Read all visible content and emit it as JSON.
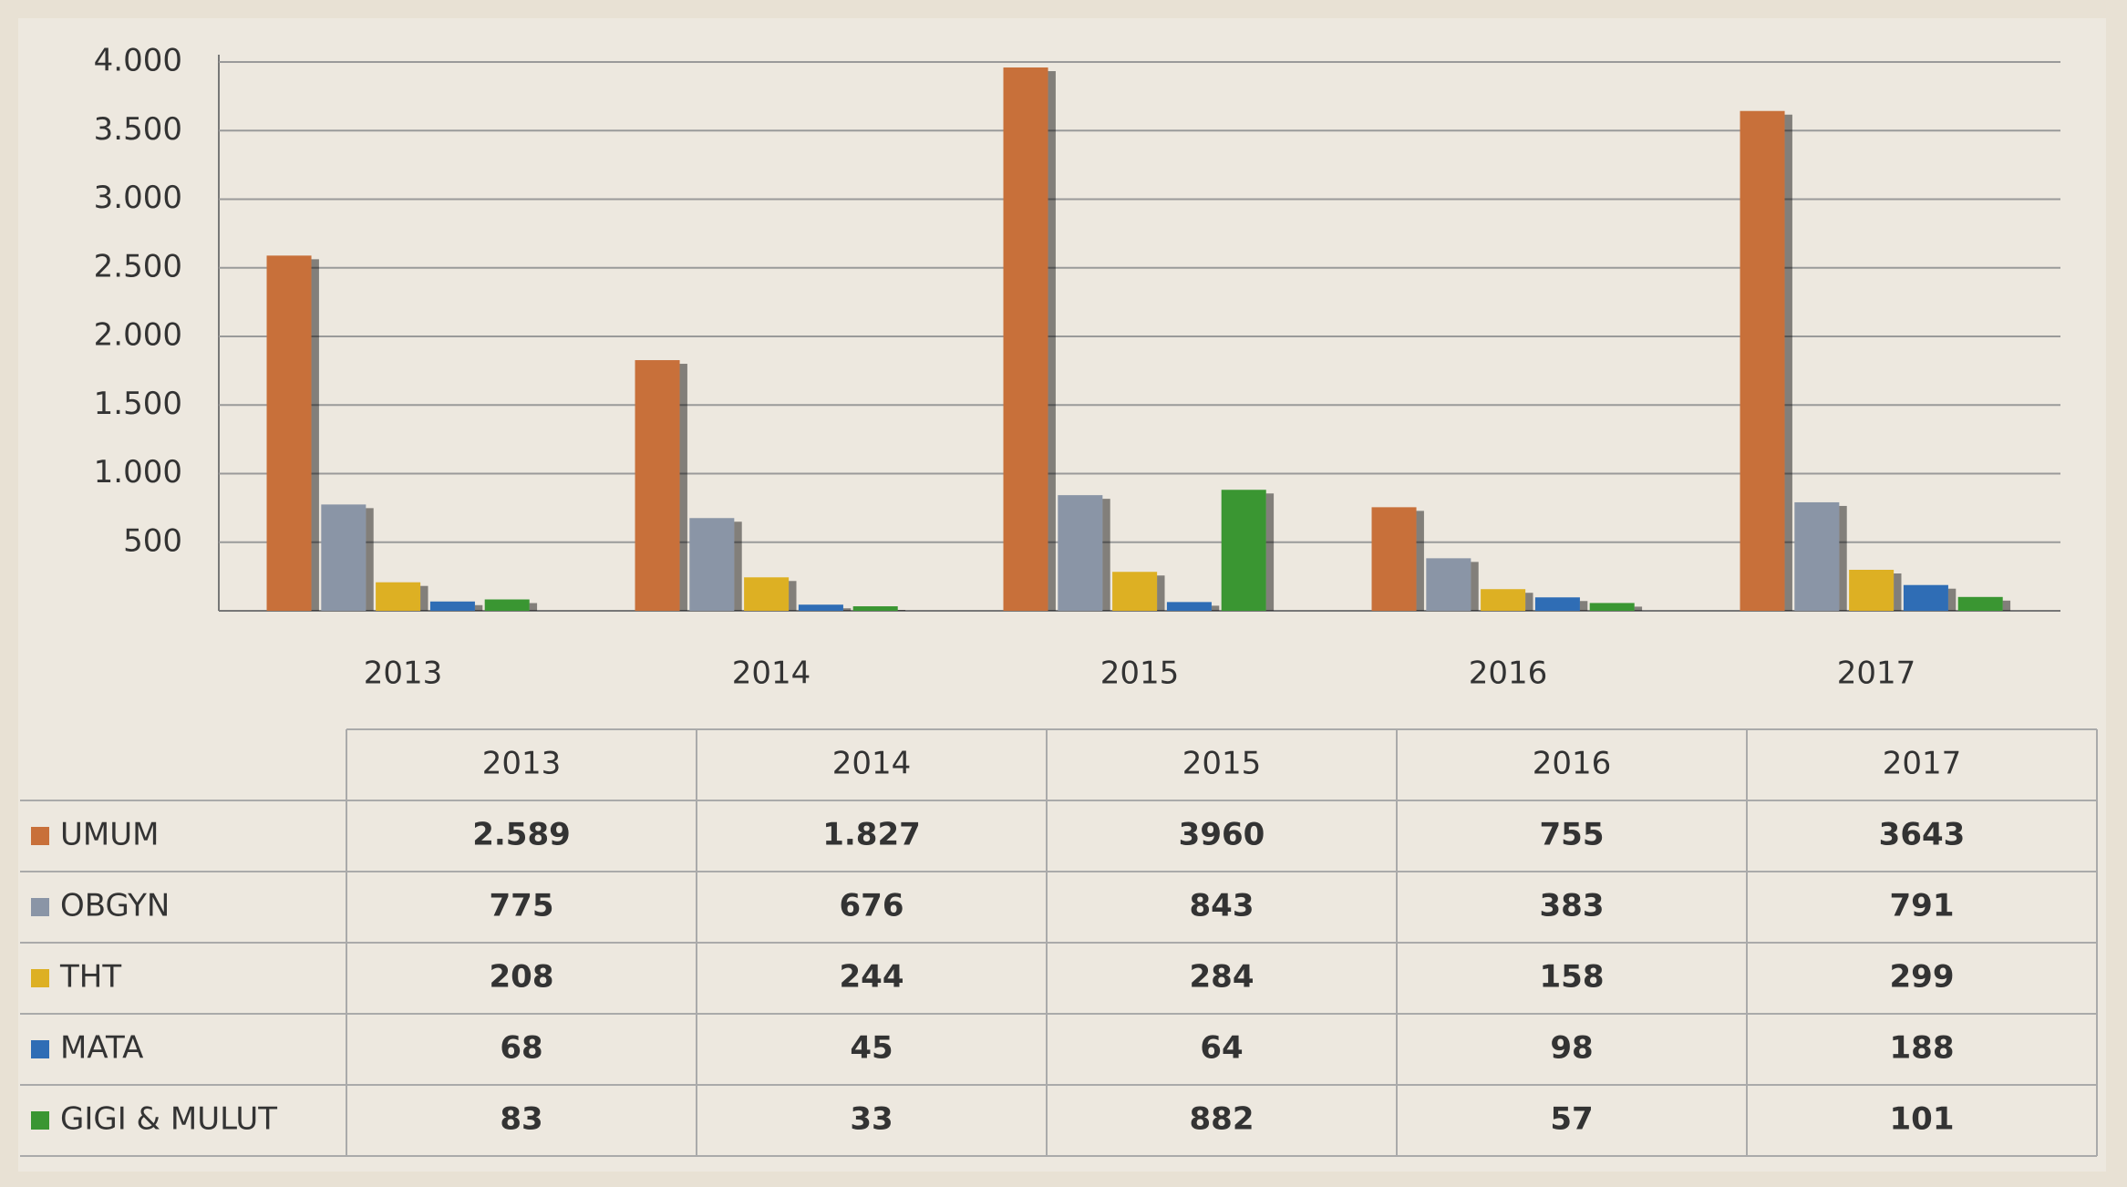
{
  "chart_data": {
    "type": "bar",
    "categories": [
      "2013",
      "2014",
      "2015",
      "2016",
      "2017"
    ],
    "series": [
      {
        "name": "UMUM",
        "color": "#c8703a",
        "values": [
          2589,
          1827,
          3960,
          755,
          3643
        ],
        "value_labels": [
          "2.589",
          "1.827",
          "3960",
          "755",
          "3643"
        ]
      },
      {
        "name": "OBGYN",
        "color": "#8a95a6",
        "values": [
          775,
          676,
          843,
          383,
          791
        ]
      },
      {
        "name": "THT",
        "color": "#ddb023",
        "values": [
          208,
          244,
          284,
          158,
          299
        ]
      },
      {
        "name": "MATA",
        "color": "#2f6db5",
        "values": [
          68,
          45,
          64,
          98,
          188
        ]
      },
      {
        "name": "GIGI & MULUT",
        "color": "#3a9632",
        "values": [
          83,
          33,
          882,
          57,
          101
        ]
      }
    ],
    "ylim": [
      0,
      4000
    ],
    "yticks": [
      500,
      {
        "value": 1000,
        "label": "1.000"
      },
      {
        "value": 1500,
        "label": "1.500"
      },
      {
        "value": 2000,
        "label": "2.000"
      },
      {
        "value": 2500,
        "label": "2.500"
      },
      {
        "value": 3000,
        "label": "3.000"
      },
      {
        "value": 3500,
        "label": "3.500"
      },
      {
        "value": 4000,
        "label": "4.000"
      }
    ],
    "grid": true
  }
}
